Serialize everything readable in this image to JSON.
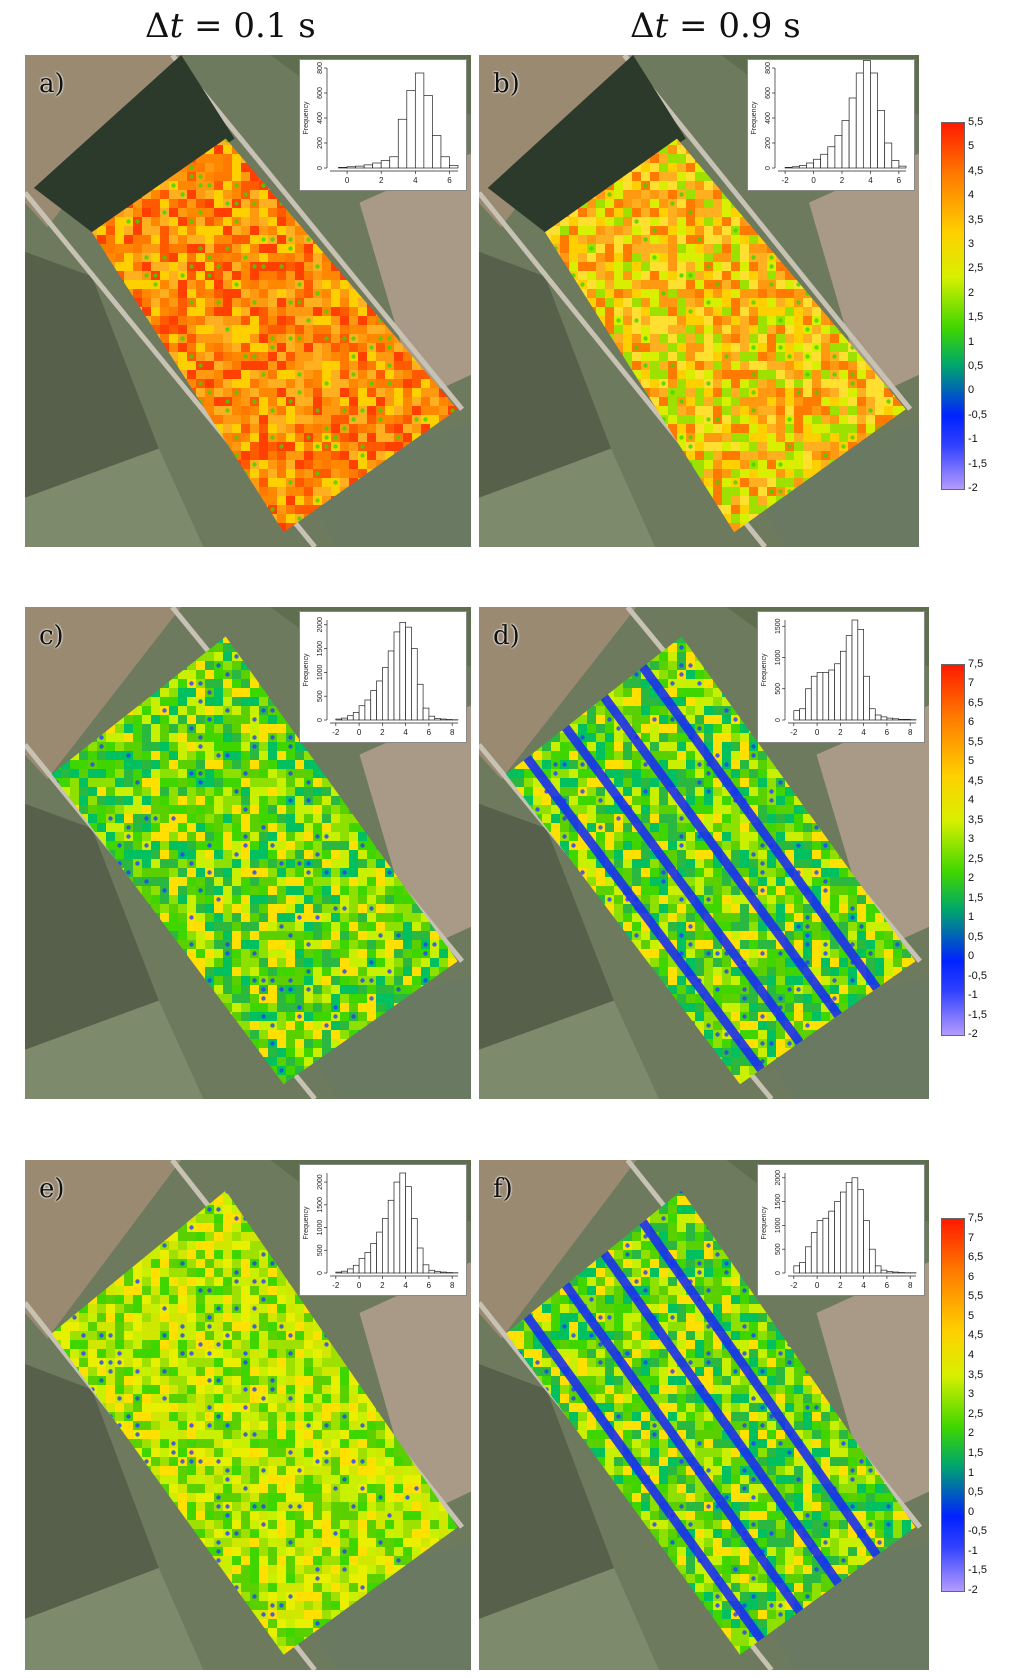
{
  "titles": {
    "left_prefix": "Δ",
    "left_var": "t",
    "left_suffix": " = 0.1 s",
    "right_prefix": "Δ",
    "right_var": "t",
    "right_suffix": " = 0.9 s"
  },
  "panels": [
    {
      "label": "a)",
      "theme": "warm",
      "stripes": false,
      "hist": {
        "ylabel": "Frequency",
        "yticks": [
          "0",
          "200",
          "400",
          "600",
          "800"
        ],
        "ymax": 800,
        "xticks": [
          "0",
          "2",
          "4",
          "6"
        ],
        "xmin": -1,
        "xmax": 6.5,
        "bins": [
          -0.5,
          0,
          0.5,
          1,
          1.5,
          2,
          2.5,
          3,
          3.5,
          4,
          4.5,
          5,
          5.5,
          6
        ],
        "counts": [
          5,
          10,
          15,
          25,
          40,
          60,
          90,
          390,
          620,
          760,
          580,
          260,
          90,
          20
        ]
      }
    },
    {
      "label": "b)",
      "theme": "mixed",
      "stripes": false,
      "hist": {
        "ylabel": "Frequency",
        "yticks": [
          "0",
          "200",
          "400",
          "600",
          "800"
        ],
        "ymax": 800,
        "xticks": [
          "-2",
          "0",
          "2",
          "4",
          "6"
        ],
        "xmin": -2.5,
        "xmax": 6.5,
        "bins": [
          -2,
          -1.5,
          -1,
          -0.5,
          0,
          0.5,
          1,
          1.5,
          2,
          2.5,
          3,
          3.5,
          4,
          4.5,
          5,
          5.5,
          6
        ],
        "counts": [
          5,
          10,
          20,
          40,
          70,
          110,
          170,
          260,
          380,
          560,
          760,
          860,
          760,
          460,
          200,
          60,
          15
        ]
      }
    },
    {
      "label": "c)",
      "theme": "green",
      "stripes": false,
      "hist": {
        "ylabel": "Frequency",
        "yticks": [
          "0",
          "500",
          "1000",
          "1500",
          "2000"
        ],
        "ymax": 2100,
        "xticks": [
          "-2",
          "0",
          "2",
          "4",
          "6",
          "8"
        ],
        "xmin": -2.5,
        "xmax": 8.5,
        "bins": [
          -2,
          -1.5,
          -1,
          -0.5,
          0,
          0.5,
          1,
          1.5,
          2,
          2.5,
          3,
          3.5,
          4,
          4.5,
          5,
          5.5,
          6,
          6.5,
          7,
          7.5,
          8
        ],
        "counts": [
          20,
          40,
          90,
          160,
          300,
          420,
          620,
          820,
          1100,
          1450,
          1850,
          2050,
          1950,
          1500,
          750,
          250,
          80,
          30,
          20,
          10,
          5
        ]
      }
    },
    {
      "label": "d)",
      "theme": "green",
      "stripes": true,
      "hist": {
        "ylabel": "Frequency",
        "yticks": [
          "0",
          "500",
          "1000",
          "1500"
        ],
        "ymax": 1600,
        "xticks": [
          "-2",
          "0",
          "2",
          "4",
          "6",
          "8"
        ],
        "xmin": -2.5,
        "xmax": 8.5,
        "bins": [
          -2,
          -1.5,
          -1,
          -0.5,
          0,
          0.5,
          1,
          1.5,
          2,
          2.5,
          3,
          3.5,
          4,
          4.5,
          5,
          5.5,
          6,
          6.5,
          7,
          7.5,
          8
        ],
        "counts": [
          150,
          180,
          500,
          700,
          760,
          760,
          800,
          900,
          1100,
          1350,
          1600,
          1450,
          700,
          180,
          80,
          50,
          30,
          20,
          10,
          10,
          5
        ]
      }
    },
    {
      "label": "e)",
      "theme": "green-yellow",
      "stripes": false,
      "hist": {
        "ylabel": "Frequency",
        "yticks": [
          "0",
          "500",
          "1000",
          "1500",
          "2000"
        ],
        "ymax": 2200,
        "xticks": [
          "-2",
          "0",
          "2",
          "4",
          "6",
          "8"
        ],
        "xmin": -2.5,
        "xmax": 8.5,
        "bins": [
          -2,
          -1.5,
          -1,
          -0.5,
          0,
          0.5,
          1,
          1.5,
          2,
          2.5,
          3,
          3.5,
          4,
          4.5,
          5,
          5.5,
          6,
          6.5,
          7,
          7.5,
          8
        ],
        "counts": [
          20,
          40,
          90,
          170,
          320,
          450,
          650,
          900,
          1200,
          1600,
          2000,
          2200,
          1900,
          1200,
          550,
          180,
          60,
          30,
          20,
          10,
          5
        ]
      }
    },
    {
      "label": "f)",
      "theme": "green",
      "stripes": true,
      "hist": {
        "ylabel": "Frequency",
        "yticks": [
          "0",
          "500",
          "1000",
          "1500",
          "2000"
        ],
        "ymax": 2100,
        "xticks": [
          "-2",
          "0",
          "2",
          "4",
          "6",
          "8"
        ],
        "xmin": -2.5,
        "xmax": 8.5,
        "bins": [
          -2,
          -1.5,
          -1,
          -0.5,
          0,
          0.5,
          1,
          1.5,
          2,
          2.5,
          3,
          3.5,
          4,
          4.5,
          5,
          5.5,
          6,
          6.5,
          7,
          7.5,
          8
        ],
        "counts": [
          150,
          220,
          550,
          850,
          1100,
          1150,
          1300,
          1500,
          1700,
          1900,
          2000,
          1750,
          1100,
          500,
          150,
          60,
          30,
          20,
          10,
          5,
          5
        ]
      }
    }
  ],
  "colorbars": [
    {
      "ticks": [
        "5,5",
        "5",
        "4,5",
        "4",
        "3,5",
        "3",
        "2,5",
        "2",
        "1,5",
        "1",
        "0,5",
        "0",
        "-0,5",
        "-1",
        "-1,5",
        "-2"
      ]
    },
    {
      "ticks": [
        "7,5",
        "7",
        "6,5",
        "6",
        "5,5",
        "5",
        "4,5",
        "4",
        "3,5",
        "3",
        "2,5",
        "2",
        "1,5",
        "1",
        "0,5",
        "0",
        "-0,5",
        "-1",
        "-1,5",
        "-2"
      ]
    },
    {
      "ticks": [
        "7,5",
        "7",
        "6,5",
        "6",
        "5,5",
        "5",
        "4,5",
        "4",
        "3,5",
        "3",
        "2,5",
        "2",
        "1,5",
        "1",
        "0,5",
        "0",
        "-0,5",
        "-1",
        "-1,5",
        "-2"
      ]
    }
  ]
}
